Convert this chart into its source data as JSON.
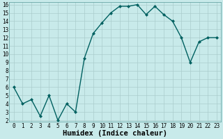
{
  "x": [
    0,
    1,
    2,
    3,
    4,
    5,
    6,
    7,
    8,
    9,
    10,
    11,
    12,
    13,
    14,
    15,
    16,
    17,
    18,
    19,
    20,
    21,
    22,
    23
  ],
  "y": [
    6,
    4,
    4.5,
    2.5,
    5,
    2,
    4,
    3,
    9.5,
    12.5,
    13.8,
    15,
    15.8,
    15.8,
    16,
    14.8,
    15.8,
    14.8,
    14,
    12,
    9,
    11.5,
    12,
    12
  ],
  "line_color": "#006060",
  "marker": "D",
  "marker_size": 2.0,
  "bg_color": "#c8eaea",
  "grid_color": "#aacccc",
  "xlabel": "Humidex (Indice chaleur)",
  "ylim": [
    2,
    16
  ],
  "xlim": [
    -0.5,
    23.5
  ],
  "yticks": [
    2,
    3,
    4,
    5,
    6,
    7,
    8,
    9,
    10,
    11,
    12,
    13,
    14,
    15,
    16
  ],
  "xticks": [
    0,
    1,
    2,
    3,
    4,
    5,
    6,
    7,
    8,
    9,
    10,
    11,
    12,
    13,
    14,
    15,
    16,
    17,
    18,
    19,
    20,
    21,
    22,
    23
  ],
  "tick_fontsize": 5.5,
  "xlabel_fontsize": 7.5,
  "line_width": 1.0
}
